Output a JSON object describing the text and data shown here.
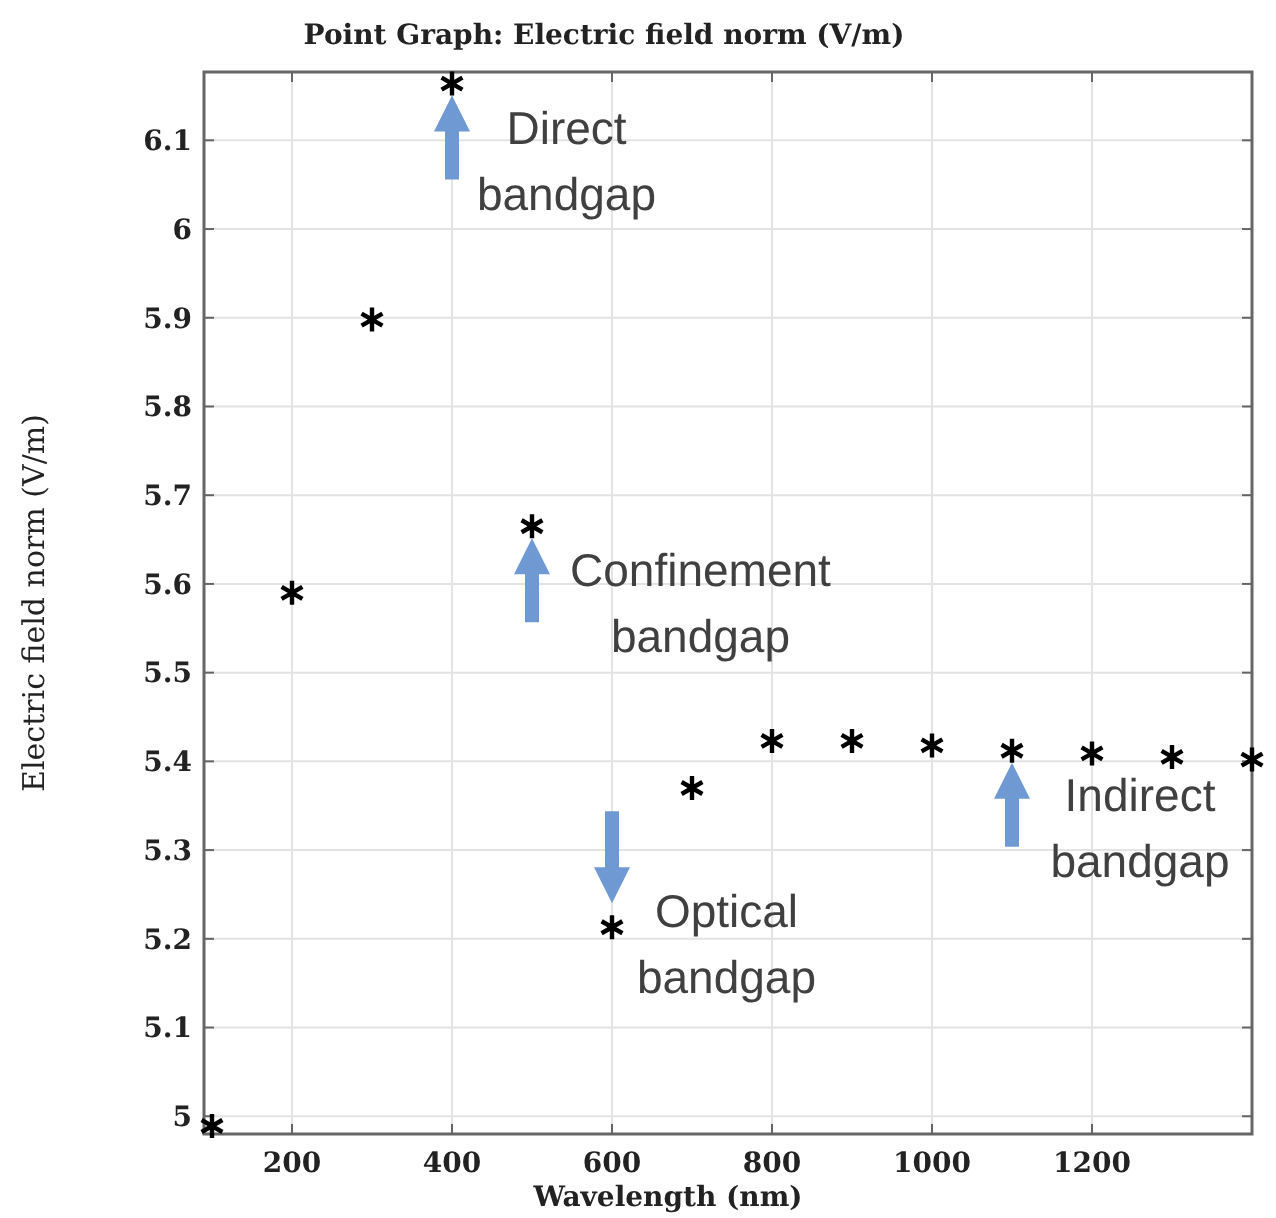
{
  "chart_data": {
    "type": "scatter",
    "title": "Point Graph: Electric field norm (V/m)",
    "xlabel": "Wavelength (nm)",
    "ylabel": "Electric field norm (V/m)",
    "x": [
      100,
      200,
      300,
      400,
      500,
      600,
      700,
      800,
      900,
      1000,
      1100,
      1200,
      1300,
      1400
    ],
    "series": [
      {
        "color": "#000000",
        "values": [
          4.989,
          5.59,
          5.898,
          6.164,
          5.665,
          5.213,
          5.37,
          5.423,
          5.423,
          5.418,
          5.412,
          5.409,
          5.405,
          5.402
        ]
      }
    ],
    "xlim": [
      90,
      1400
    ],
    "ylim": [
      4.98,
      6.177
    ],
    "xticks": [
      200,
      400,
      600,
      800,
      1000,
      1200
    ],
    "yticks": [
      5,
      5.1,
      5.2,
      5.3,
      5.4,
      5.5,
      5.6,
      5.7,
      5.8,
      5.9,
      6,
      6.1
    ],
    "grid": true,
    "marker": "cross",
    "annotations": [
      {
        "text": "Direct\nbandgap",
        "x": 400,
        "y": 6.164
      },
      {
        "text": "Confinement\nbandgap",
        "x": 500,
        "y": 5.665
      },
      {
        "text": "Optical\nbandgap",
        "x": 600,
        "y": 5.213
      },
      {
        "text": "Indirect\nbandgap",
        "x": 1100,
        "y": 5.412
      }
    ]
  }
}
